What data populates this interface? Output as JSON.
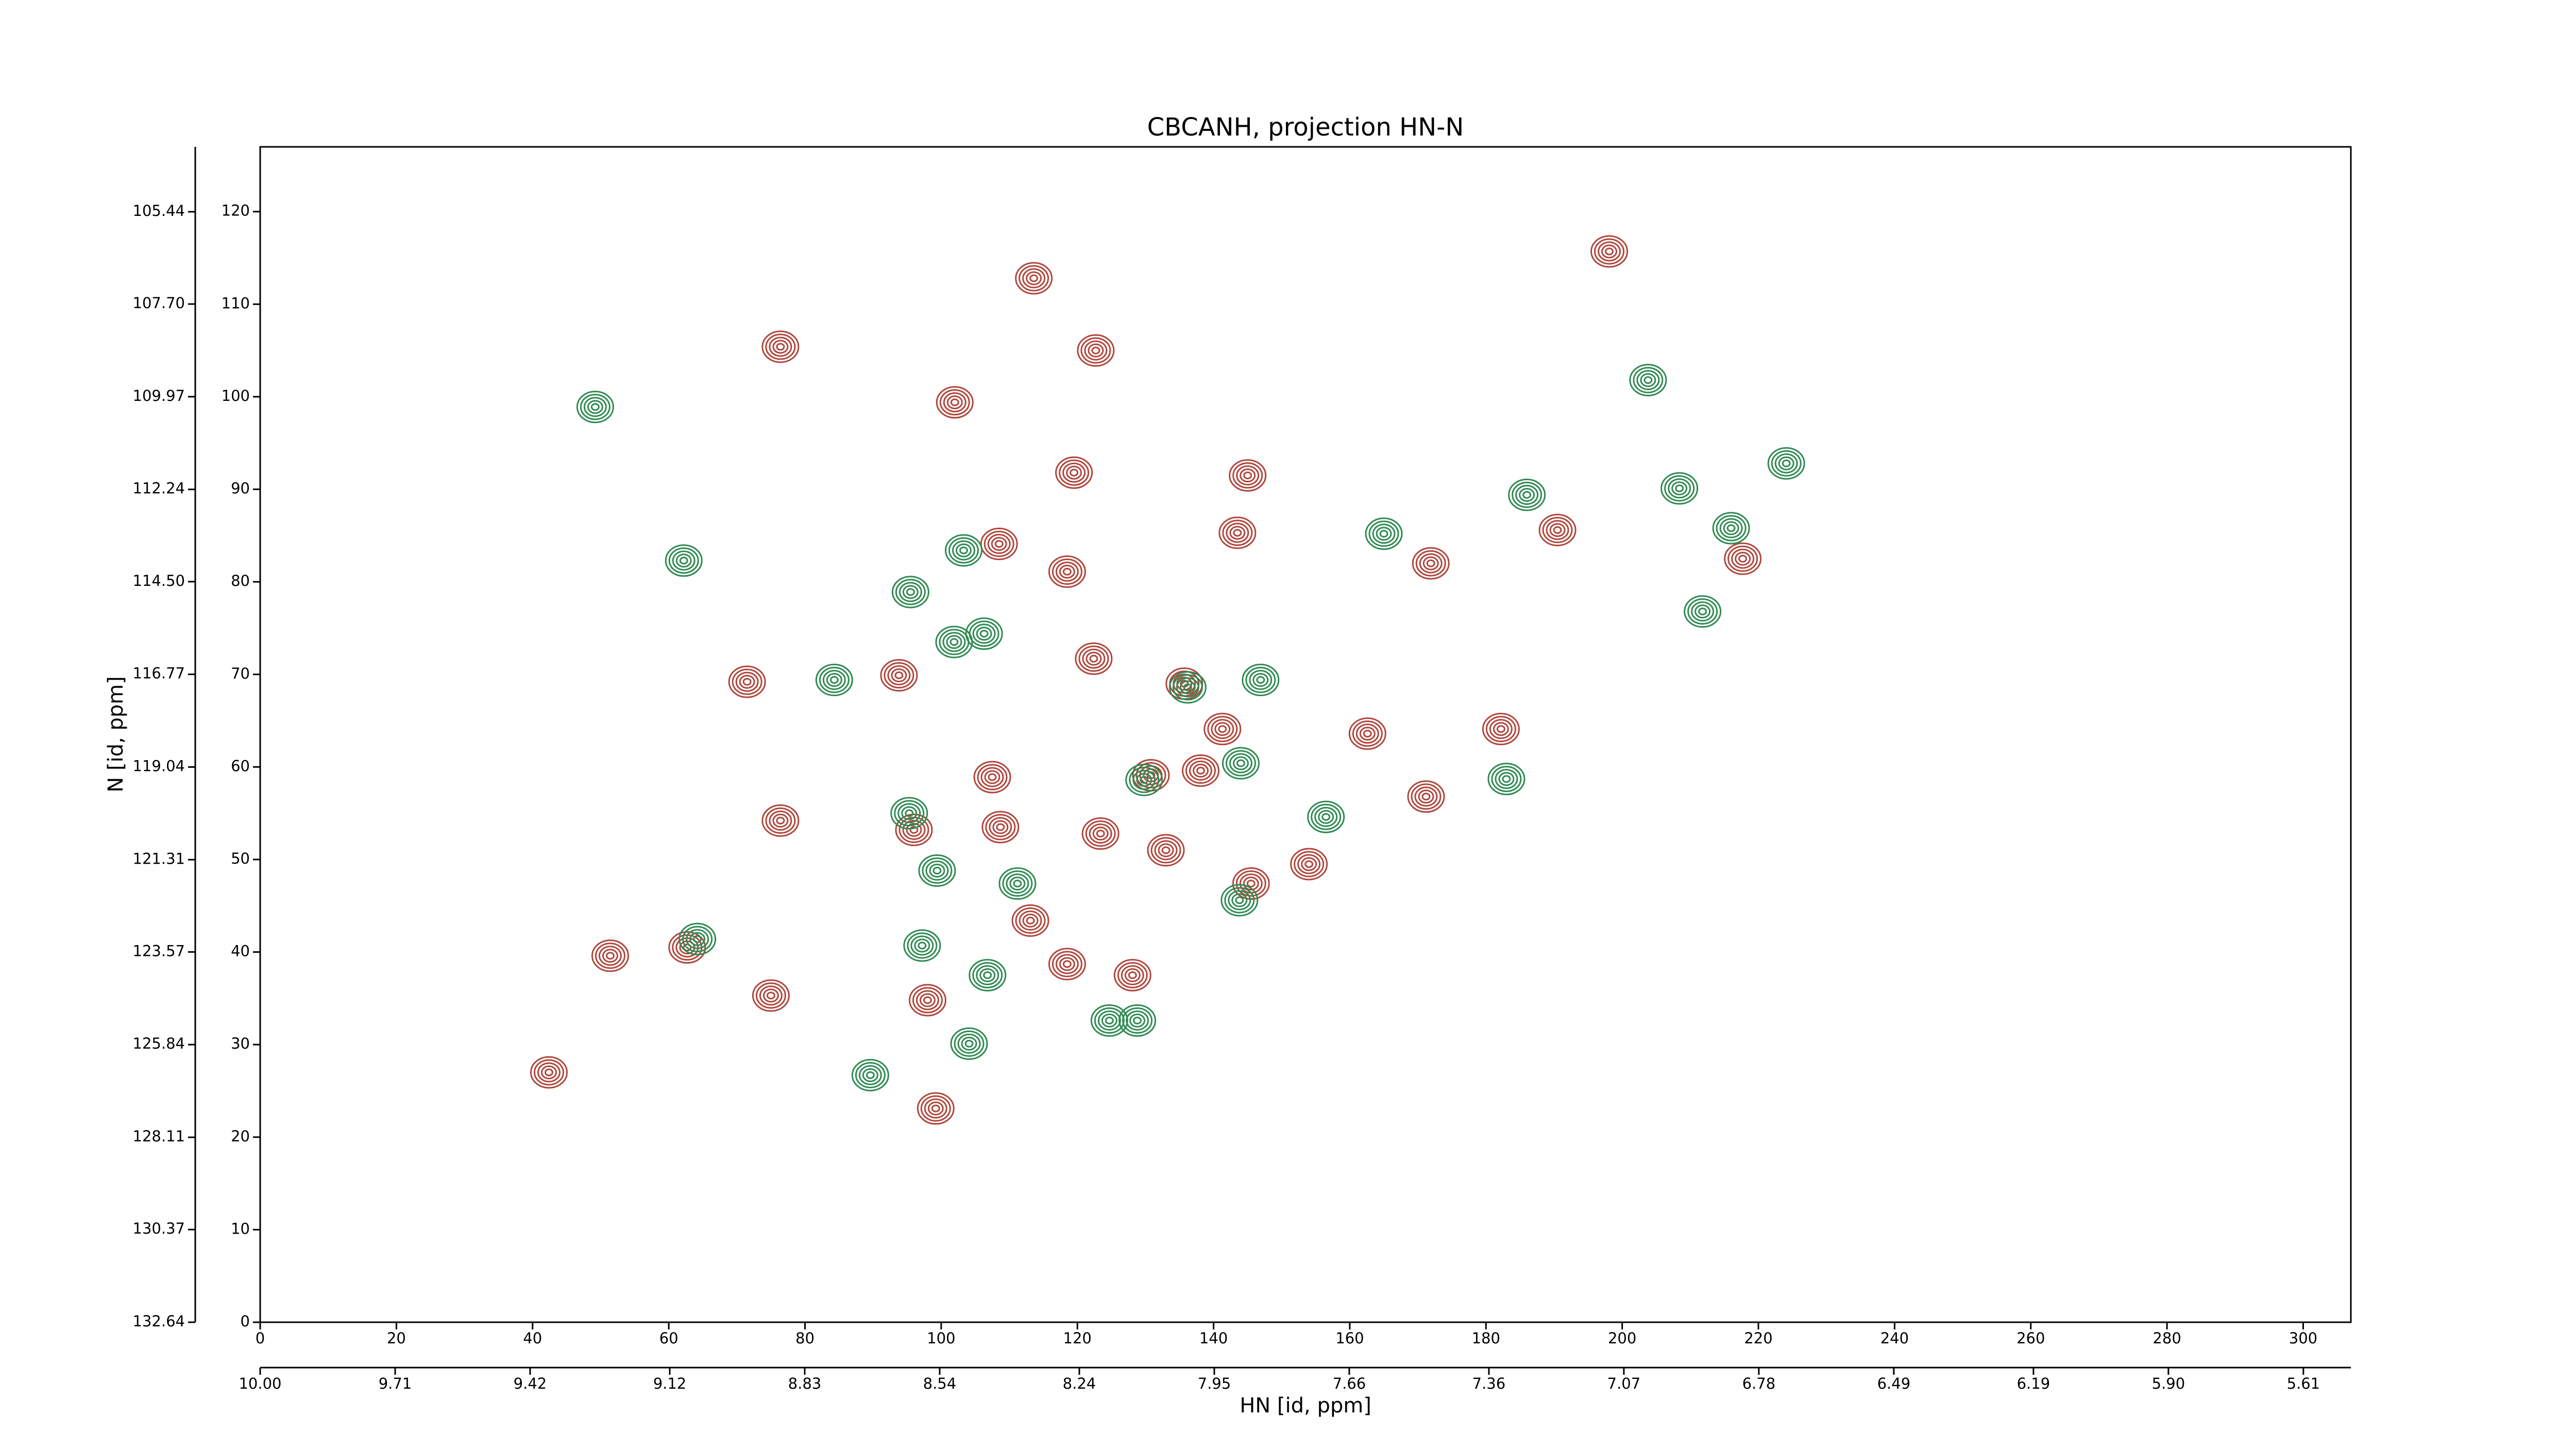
{
  "chart_data": {
    "type": "contour",
    "title": "CBCANH, projection HN-N",
    "xlabel": "HN [id, ppm]",
    "ylabel": "N [id, ppm]",
    "xlim": [
      0,
      307
    ],
    "xticks": [
      0,
      20,
      40,
      60,
      80,
      100,
      120,
      140,
      160,
      180,
      200,
      220,
      240,
      260,
      280,
      300
    ],
    "x2lim": [
      10.0,
      5.508
    ],
    "x2ticks": [
      {
        "value": 10.0,
        "label": "10.00"
      },
      9.71,
      9.42,
      9.12,
      8.83,
      8.54,
      8.24,
      7.95,
      7.66,
      7.36,
      7.07,
      6.78,
      6.49,
      6.19,
      {
        "value": 5.9,
        "label": "5.90"
      },
      5.61
    ],
    "ylim": [
      0,
      127
    ],
    "yticks": [
      0,
      10,
      20,
      30,
      40,
      50,
      60,
      70,
      80,
      90,
      100,
      110,
      120
    ],
    "y2lim": [
      132.64,
      103.85
    ],
    "y2ticks": [
      132.64,
      130.37,
      128.11,
      125.84,
      123.57,
      121.31,
      119.04,
      116.77,
      {
        "value": 114.5,
        "label": "114.50"
      },
      112.24,
      109.97,
      {
        "value": 107.7,
        "label": "107.70"
      },
      105.44
    ],
    "series": [
      {
        "color": "#b0463c",
        "x": [
          113.6,
          76.4,
          198.1,
          122.7,
          102,
          119.5,
          145,
          143.5,
          108.5,
          118.5,
          190.5,
          217.7,
          171.9,
          71.5,
          93.8,
          122.4,
          135.7,
          141.3,
          162.6,
          182.2,
          171.2,
          107.5,
          130.8,
          138.1,
          76.4,
          108.7,
          123.4,
          154,
          145.5,
          96,
          113.1,
          118.5,
          128.1,
          51.4,
          62.7,
          75,
          99.2,
          42.4,
          98,
          133
        ],
        "y": [
          112.8,
          105.4,
          115.7,
          105.0,
          99.4,
          91.8,
          91.5,
          85.3,
          84.1,
          81.1,
          85.6,
          82.5,
          82,
          69.2,
          69.9,
          71.7,
          69,
          64.1,
          63.6,
          64.1,
          56.8,
          58.9,
          59.1,
          59.6,
          54.2,
          53.5,
          52.8,
          49.5,
          47.4,
          53.2,
          43.4,
          38.7,
          37.5,
          39.6,
          40.5,
          35.3,
          23.1,
          27,
          34.8,
          51
        ]
      },
      {
        "color": "#2f8a52",
        "x": [
          49.2,
          62.2,
          203.8,
          186,
          208.4,
          216,
          224.1,
          103.3,
          95.5,
          101.9,
          106.3,
          84.3,
          146.9,
          136.2,
          144,
          129.8,
          183,
          95.3,
          111.2,
          99.4,
          143.8,
          97.2,
          106.8,
          124.7,
          128.8,
          104.1,
          89.6,
          64.2,
          165,
          211.8,
          156.5
        ],
        "y": [
          98.9,
          82.3,
          101.8,
          89.4,
          90.1,
          85.8,
          92.8,
          83.4,
          78.9,
          73.5,
          74.4,
          69.4,
          69.4,
          68.6,
          60.4,
          58.6,
          58.7,
          55,
          47.4,
          48.8,
          45.6,
          40.7,
          37.5,
          32.6,
          32.6,
          30.1,
          26.7,
          41.4,
          85.2,
          76.8,
          54.6
        ]
      }
    ]
  }
}
